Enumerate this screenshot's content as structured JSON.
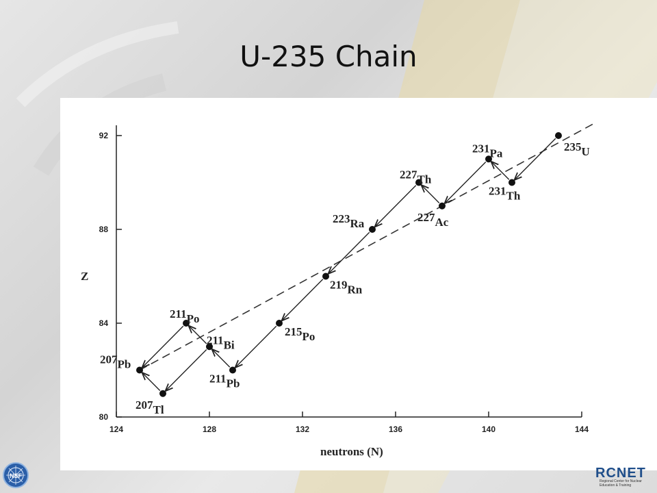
{
  "slide": {
    "title": "U-235 Chain"
  },
  "chart_data": {
    "type": "scatter",
    "xlabel": "neutrons (N)",
    "ylabel": "Z",
    "xlim": [
      124,
      144
    ],
    "ylim": [
      80,
      92
    ],
    "xticks": [
      124,
      128,
      132,
      136,
      140,
      144
    ],
    "yticks": [
      80,
      84,
      88,
      92
    ],
    "grid": false,
    "points": [
      {
        "mass": "235",
        "sym": "U",
        "n": 143,
        "z": 92
      },
      {
        "mass": "231",
        "sym": "Th",
        "n": 141,
        "z": 90
      },
      {
        "mass": "231",
        "sym": "Pa",
        "n": 140,
        "z": 91
      },
      {
        "mass": "227",
        "sym": "Ac",
        "n": 138,
        "z": 89
      },
      {
        "mass": "227",
        "sym": "Th",
        "n": 137,
        "z": 90
      },
      {
        "mass": "223",
        "sym": "Ra",
        "n": 135,
        "z": 88
      },
      {
        "mass": "219",
        "sym": "Rn",
        "n": 133,
        "z": 86
      },
      {
        "mass": "215",
        "sym": "Po",
        "n": 131,
        "z": 84
      },
      {
        "mass": "211",
        "sym": "Pb",
        "n": 129,
        "z": 82
      },
      {
        "mass": "211",
        "sym": "Bi",
        "n": 128,
        "z": 83
      },
      {
        "mass": "211",
        "sym": "Po",
        "n": 127,
        "z": 84
      },
      {
        "mass": "207",
        "sym": "Tl",
        "n": 126,
        "z": 81
      },
      {
        "mass": "207",
        "sym": "Pb",
        "n": 125,
        "z": 82
      }
    ],
    "decays": [
      {
        "from": "235U",
        "to": "231Th"
      },
      {
        "from": "231Th",
        "to": "231Pa"
      },
      {
        "from": "231Pa",
        "to": "227Ac"
      },
      {
        "from": "227Ac",
        "to": "227Th"
      },
      {
        "from": "227Th",
        "to": "223Ra"
      },
      {
        "from": "223Ra",
        "to": "219Rn"
      },
      {
        "from": "219Rn",
        "to": "215Po"
      },
      {
        "from": "215Po",
        "to": "211Pb"
      },
      {
        "from": "211Pb",
        "to": "211Bi"
      },
      {
        "from": "211Bi",
        "to": "211Po"
      },
      {
        "from": "211Bi",
        "to": "207Tl"
      },
      {
        "from": "211Po",
        "to": "207Pb"
      },
      {
        "from": "207Tl",
        "to": "207Pb"
      }
    ],
    "trend_line": {
      "style": "dashed",
      "from": {
        "n": 125,
        "z": 82
      },
      "to": {
        "n": 144.5,
        "z": 92.5
      }
    }
  },
  "logos": {
    "left": "NSF",
    "right_word": "RCNET",
    "right_subtitle": "Regional Center for Nuclear Education & Training"
  },
  "colors": {
    "title": "#111111",
    "ink": "#222222",
    "rcnet_blue": "#1f4e8a",
    "rcnet_green": "#6a9a3a"
  }
}
